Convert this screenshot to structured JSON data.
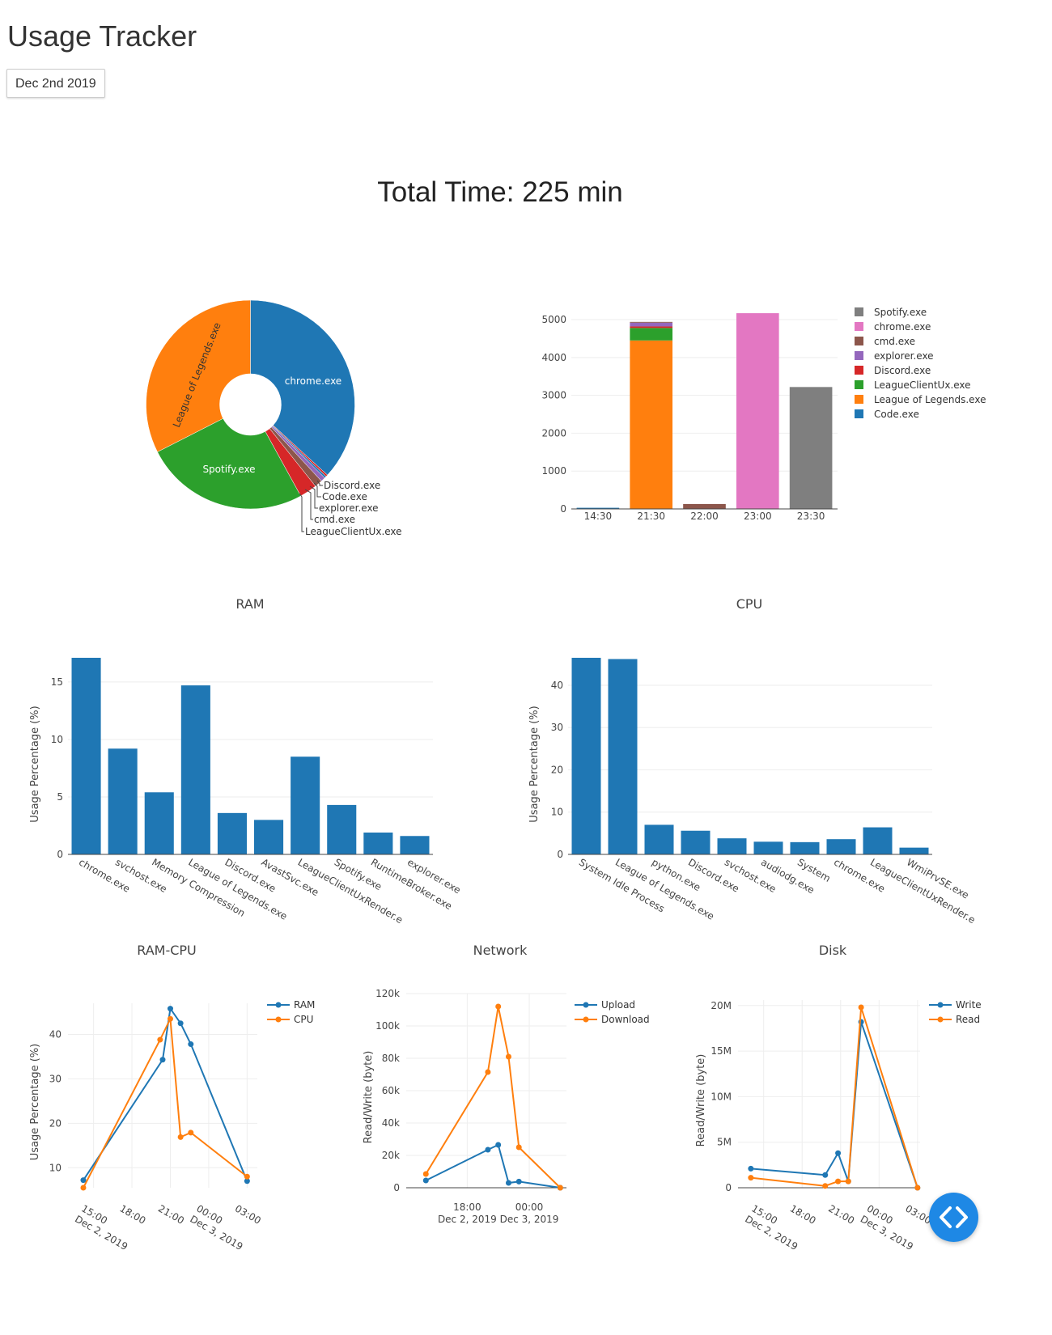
{
  "header": {
    "title": "Usage Tracker"
  },
  "date_picker": {
    "value": "Dec 2nd 2019"
  },
  "summary": {
    "total_time": "Total Time: 225 min"
  },
  "colors": {
    "Code.exe": "#1f77b4",
    "League of Legends.exe": "#ff7f0e",
    "LeagueClientUx.exe": "#2ca02c",
    "Discord.exe": "#d62728",
    "explorer.exe": "#9467bd",
    "cmd.exe": "#8c564b",
    "chrome.exe": "#e377c2",
    "Spotify.exe": "#7f7f7f",
    "blue": "#1f77b4",
    "orange": "#ff7f0e",
    "fab": "#1e88e5"
  },
  "chart_data": [
    {
      "id": "usage-pie",
      "type": "pie",
      "hole": true,
      "labels": [
        "chrome.exe",
        "Discord.exe",
        "Code.exe",
        "explorer.exe",
        "cmd.exe",
        "LeagueClientUx.exe",
        "Spotify.exe",
        "League of Legends.exe"
      ],
      "values": [
        36.8,
        0.3,
        0.3,
        0.7,
        1.2,
        2.7,
        25.5,
        32.5
      ],
      "colors": [
        "#1f77b4",
        "#d62728",
        "#1f77b4",
        "#9467bd",
        "#8c564b",
        "#d62728",
        "#2ca02c",
        "#ff7f0e"
      ]
    },
    {
      "id": "usage-stacked-bar",
      "type": "bar",
      "stacked": true,
      "categories": [
        "14:30",
        "21:30",
        "22:00",
        "23:00",
        "23:30"
      ],
      "ylim": [
        0,
        5300
      ],
      "yticks": [
        0,
        1000,
        2000,
        3000,
        4000,
        5000
      ],
      "legend": [
        "Spotify.exe",
        "chrome.exe",
        "cmd.exe",
        "explorer.exe",
        "Discord.exe",
        "LeagueClientUx.exe",
        "League of Legends.exe",
        "Code.exe"
      ],
      "series": [
        {
          "name": "Code.exe",
          "values": [
            30,
            0,
            0,
            0,
            0
          ]
        },
        {
          "name": "League of Legends.exe",
          "values": [
            0,
            4450,
            0,
            0,
            0
          ]
        },
        {
          "name": "LeagueClientUx.exe",
          "values": [
            0,
            330,
            0,
            0,
            0
          ]
        },
        {
          "name": "Discord.exe",
          "values": [
            0,
            40,
            0,
            0,
            0
          ]
        },
        {
          "name": "explorer.exe",
          "values": [
            0,
            100,
            0,
            0,
            0
          ]
        },
        {
          "name": "cmd.exe",
          "values": [
            0,
            20,
            130,
            0,
            0
          ]
        },
        {
          "name": "chrome.exe",
          "values": [
            0,
            0,
            0,
            5170,
            0
          ]
        },
        {
          "name": "Spotify.exe",
          "values": [
            0,
            0,
            0,
            0,
            3220
          ]
        }
      ]
    },
    {
      "id": "ram-bar",
      "type": "bar",
      "title": "RAM",
      "ylabel": "Usage Percentage (%)",
      "categories": [
        "chrome.exe",
        "svchost.exe",
        "Memory Compression",
        "League of Legends.exe",
        "Discord.exe",
        "AvastSvc.exe",
        "LeagueClientUxRender.e",
        "Spotify.exe",
        "RuntimeBroker.exe",
        "explorer.exe"
      ],
      "values": [
        17.1,
        9.2,
        5.4,
        14.7,
        3.6,
        3.0,
        8.5,
        4.3,
        1.9,
        1.6
      ],
      "ylim": [
        0,
        17.1
      ],
      "yticks": [
        0,
        5,
        10,
        15
      ]
    },
    {
      "id": "cpu-bar",
      "type": "bar",
      "title": "CPU",
      "ylabel": "Usage Percentage (%)",
      "categories": [
        "System Idle Process",
        "League of Legends.exe",
        "python.exe",
        "Discord.exe",
        "svchost.exe",
        "audiodg.exe",
        "System",
        "chrome.exe",
        "LeagueClientUxRender.e",
        "WmiPrvSE.exe"
      ],
      "values": [
        46.5,
        46.2,
        7.0,
        5.6,
        3.8,
        3.0,
        2.9,
        3.6,
        6.4,
        1.6
      ],
      "ylim": [
        0,
        46.5
      ],
      "yticks": [
        0,
        10,
        20,
        30,
        40
      ]
    },
    {
      "id": "ram-cpu-line",
      "type": "line",
      "title": "RAM-CPU",
      "ylabel": "Usage Percentage (%)",
      "ylim": [
        5.5,
        47
      ],
      "yticks": [
        10,
        20,
        30,
        40
      ],
      "xticks": [
        {
          "t": 15,
          "label": "15:00",
          "sub": "Dec 2, 2019"
        },
        {
          "t": 18,
          "label": "18:00"
        },
        {
          "t": 21,
          "label": "21:00"
        },
        {
          "t": 24,
          "label": "00:00",
          "sub": "Dec 3, 2019"
        },
        {
          "t": 27,
          "label": "03:00"
        }
      ],
      "xlim": [
        13.0,
        27.8
      ],
      "series": [
        {
          "name": "RAM",
          "x": [
            14.2,
            20.4,
            21.0,
            21.8,
            22.6,
            27.0
          ],
          "y": [
            7.2,
            34.3,
            45.8,
            42.5,
            37.8,
            7.0
          ]
        },
        {
          "name": "CPU",
          "x": [
            14.2,
            20.2,
            21.0,
            21.8,
            22.6,
            27.0
          ],
          "y": [
            5.5,
            38.8,
            43.5,
            16.9,
            17.9,
            8.0
          ]
        }
      ]
    },
    {
      "id": "network-line",
      "type": "line",
      "title": "Network",
      "ylabel": "Read/Write (byte)",
      "ylim": [
        0,
        120000
      ],
      "yticks": [
        {
          "v": 0,
          "label": "0"
        },
        {
          "v": 20000,
          "label": "20k"
        },
        {
          "v": 40000,
          "label": "40k"
        },
        {
          "v": 60000,
          "label": "60k"
        },
        {
          "v": 80000,
          "label": "80k"
        },
        {
          "v": 100000,
          "label": "100k"
        },
        {
          "v": 120000,
          "label": "120k"
        }
      ],
      "xticks": [
        {
          "t": 18,
          "label": "18:00",
          "sub": "Dec 2, 2019"
        },
        {
          "t": 24,
          "label": "00:00",
          "sub": "Dec 3, 2019"
        }
      ],
      "xlim": [
        12.1,
        27.6
      ],
      "series": [
        {
          "name": "Upload",
          "x": [
            14.0,
            20.0,
            21.0,
            22.0,
            23.0,
            27.0
          ],
          "y": [
            4500,
            23500,
            26500,
            3000,
            3800,
            0
          ]
        },
        {
          "name": "Download",
          "x": [
            14.0,
            20.0,
            21.0,
            22.0,
            23.0,
            27.0
          ],
          "y": [
            8500,
            71500,
            112000,
            81000,
            25000,
            0
          ]
        }
      ]
    },
    {
      "id": "disk-line",
      "type": "line",
      "title": "Disk",
      "ylabel": "Read/Write (byte)",
      "ylim": [
        0,
        20600000
      ],
      "yticks": [
        {
          "v": 0,
          "label": "0"
        },
        {
          "v": 5000000,
          "label": "5M"
        },
        {
          "v": 10000000,
          "label": "10M"
        },
        {
          "v": 15000000,
          "label": "15M"
        },
        {
          "v": 20000000,
          "label": "20M"
        }
      ],
      "xticks": [
        {
          "t": 15,
          "label": "15:00",
          "sub": "Dec 2, 2019"
        },
        {
          "t": 18,
          "label": "18:00"
        },
        {
          "t": 21,
          "label": "21:00"
        },
        {
          "t": 24,
          "label": "00:00",
          "sub": "Dec 3, 2019"
        },
        {
          "t": 27,
          "label": "03:00"
        }
      ],
      "xlim": [
        13.0,
        27.2
      ],
      "series": [
        {
          "name": "Write",
          "x": [
            14.0,
            19.8,
            20.8,
            21.6,
            22.6,
            27.0
          ],
          "y": [
            2100000,
            1400000,
            3800000,
            700000,
            18200000,
            0
          ]
        },
        {
          "name": "Read",
          "x": [
            14.0,
            19.8,
            20.8,
            21.6,
            22.6,
            27.0
          ],
          "y": [
            1100000,
            200000,
            700000,
            700000,
            19800000,
            0
          ]
        }
      ]
    }
  ]
}
